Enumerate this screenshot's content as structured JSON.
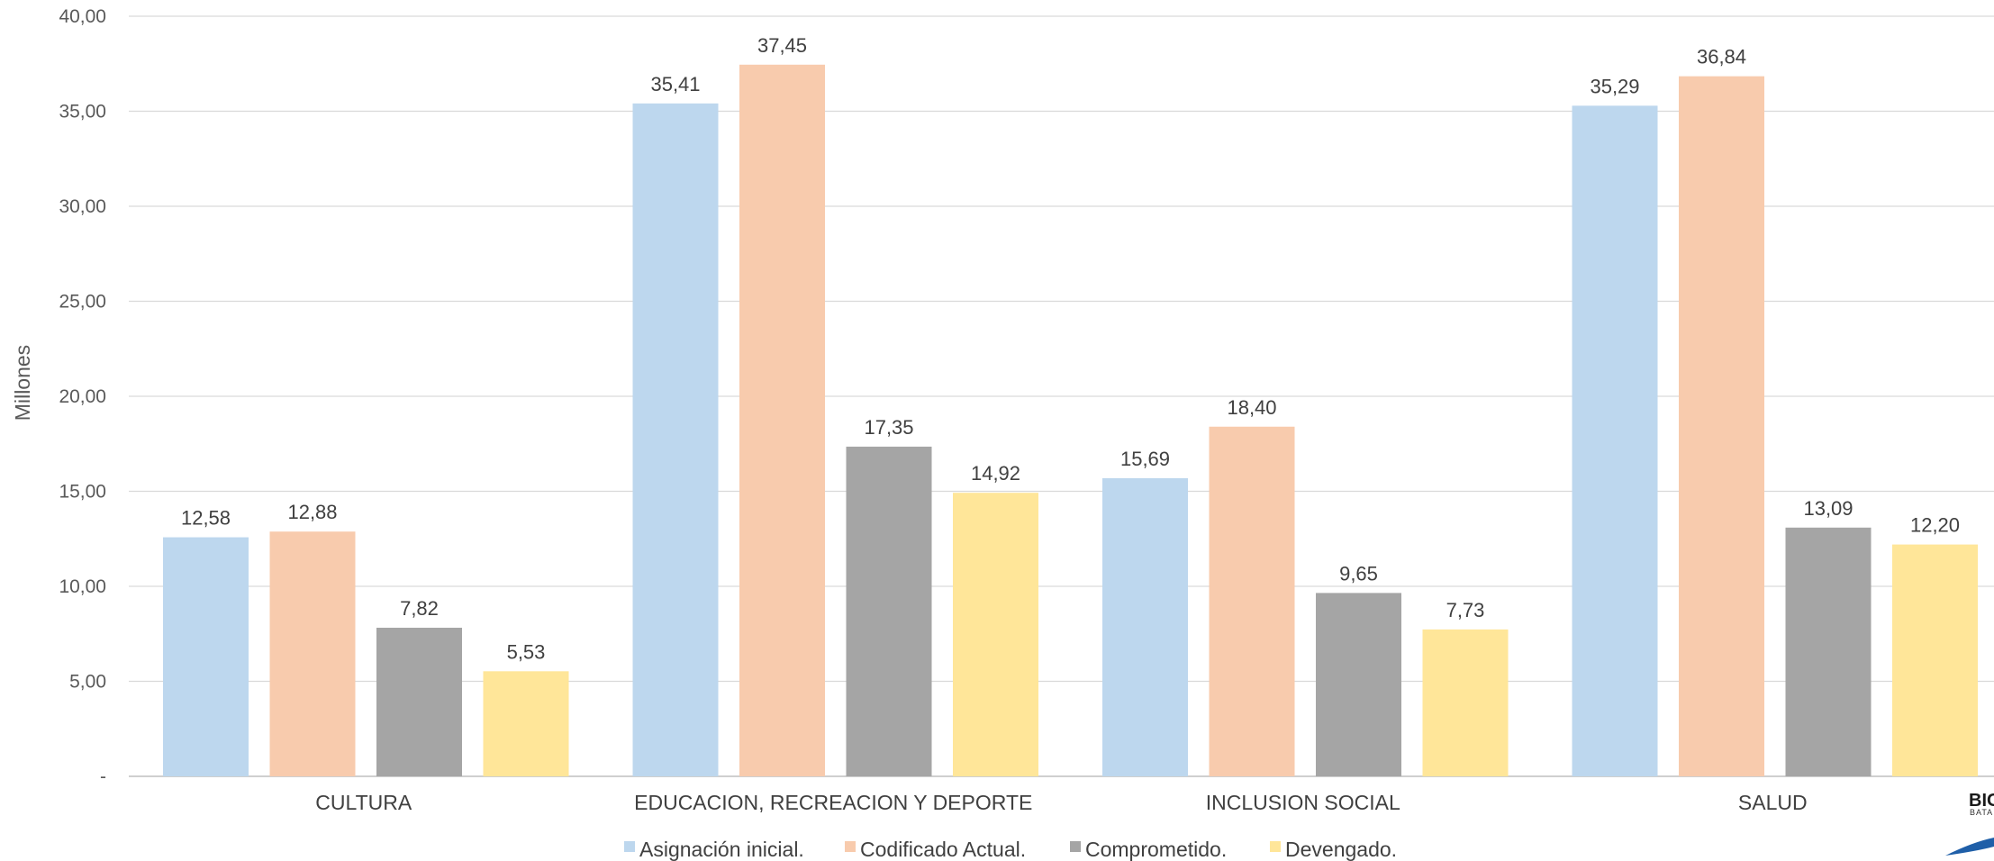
{
  "chart_data": {
    "type": "bar",
    "ylabel": "Millones",
    "ylim": [
      0,
      40
    ],
    "yticks": [
      0,
      5,
      10,
      15,
      20,
      25,
      30,
      35,
      40
    ],
    "ytick_labels": [
      "-",
      "5,00",
      "10,00",
      "15,00",
      "20,00",
      "25,00",
      "30,00",
      "35,00",
      "40,00"
    ],
    "grid": true,
    "legend_position": "bottom",
    "categories": [
      "CULTURA",
      "EDUCACION, RECREACION Y DEPORTE",
      "INCLUSION SOCIAL",
      "SALUD"
    ],
    "series": [
      {
        "name": "Asignación inicial.",
        "color": "#BDD7EE",
        "values": [
          12.58,
          35.41,
          15.69,
          35.29
        ],
        "labels": [
          "12,58",
          "35,41",
          "15,69",
          "35,29"
        ]
      },
      {
        "name": "Codificado Actual.",
        "color": "#F8CBAD",
        "values": [
          12.88,
          37.45,
          18.4,
          36.84
        ],
        "labels": [
          "12,88",
          "37,45",
          "18,40",
          "36,84"
        ]
      },
      {
        "name": "Comprometido.",
        "color": "#A5A5A5",
        "values": [
          7.82,
          17.35,
          9.65,
          13.09
        ],
        "labels": [
          "7,82",
          "17,35",
          "9,65",
          "13,09"
        ]
      },
      {
        "name": "Devengado.",
        "color": "#FFE699",
        "values": [
          5.53,
          14.92,
          7.73,
          12.2
        ],
        "labels": [
          "5,53",
          "14,92",
          "7,73",
          "12,20"
        ]
      }
    ]
  },
  "logo": {
    "text": "BIG",
    "subtext": "BATA",
    "accent_color": "#1F5FA8"
  }
}
